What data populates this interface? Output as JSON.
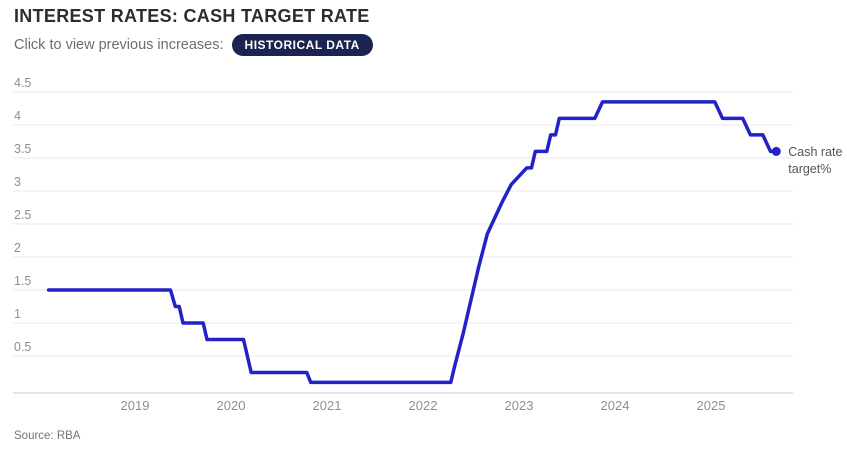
{
  "header": {
    "title": "INTEREST RATES: CASH TARGET RATE",
    "subtitle": "Click to view previous increases:",
    "badge_label": "HISTORICAL DATA"
  },
  "footer": {
    "source": "Source: RBA"
  },
  "colors": {
    "line": "#2222c8",
    "badge_bg": "#1b2350",
    "grid": "#ebebeb",
    "axis": "#c8c8c8",
    "tick_text": "#8f8f8f",
    "annotation_text": "#555555"
  },
  "chart_data": {
    "type": "line",
    "title": "INTEREST RATES: CASH TARGET RATE",
    "xlabel": "",
    "ylabel": "",
    "grid": true,
    "legend_position": "right-of-line-end",
    "xlim": [
      2018.1,
      2025.9
    ],
    "ylim": [
      0,
      4.5
    ],
    "x_ticks": [
      {
        "year": 2019,
        "label": "2019"
      },
      {
        "year": 2020,
        "label": "2020"
      },
      {
        "year": 2021,
        "label": "2021"
      },
      {
        "year": 2022,
        "label": "2022"
      },
      {
        "year": 2023,
        "label": "2023"
      },
      {
        "year": 2024,
        "label": "2024"
      },
      {
        "year": 2025,
        "label": "2025"
      }
    ],
    "y_ticks": [
      {
        "v": 4.5,
        "label": "4.5"
      },
      {
        "v": 4,
        "label": "4"
      },
      {
        "v": 3.5,
        "label": "3.5"
      },
      {
        "v": 3,
        "label": "3"
      },
      {
        "v": 2.5,
        "label": "2.5"
      },
      {
        "v": 2,
        "label": "2"
      },
      {
        "v": 1.5,
        "label": "1.5"
      },
      {
        "v": 1,
        "label": "1"
      },
      {
        "v": 0.5,
        "label": "0.5"
      }
    ],
    "series": [
      {
        "name": "Cash rate target%",
        "points": [
          [
            2018.1,
            1.5
          ],
          [
            2019.37,
            1.5
          ],
          [
            2019.42,
            1.25
          ],
          [
            2019.46,
            1.25
          ],
          [
            2019.5,
            1.0
          ],
          [
            2019.71,
            1.0
          ],
          [
            2019.75,
            0.75
          ],
          [
            2020.13,
            0.75
          ],
          [
            2020.21,
            0.25
          ],
          [
            2020.79,
            0.25
          ],
          [
            2020.83,
            0.1
          ],
          [
            2022.29,
            0.1
          ],
          [
            2022.33,
            0.35
          ],
          [
            2022.42,
            0.85
          ],
          [
            2022.5,
            1.35
          ],
          [
            2022.58,
            1.85
          ],
          [
            2022.67,
            2.35
          ],
          [
            2022.75,
            2.6
          ],
          [
            2022.83,
            2.85
          ],
          [
            2022.92,
            3.1
          ],
          [
            2023.08,
            3.35
          ],
          [
            2023.13,
            3.35
          ],
          [
            2023.17,
            3.6
          ],
          [
            2023.29,
            3.6
          ],
          [
            2023.33,
            3.85
          ],
          [
            2023.38,
            3.85
          ],
          [
            2023.42,
            4.1
          ],
          [
            2023.79,
            4.1
          ],
          [
            2023.87,
            4.35
          ],
          [
            2025.04,
            4.35
          ],
          [
            2025.12,
            4.1
          ],
          [
            2025.33,
            4.1
          ],
          [
            2025.41,
            3.85
          ],
          [
            2025.54,
            3.85
          ],
          [
            2025.62,
            3.6
          ],
          [
            2025.68,
            3.6
          ]
        ],
        "end_value": 3.6
      }
    ]
  }
}
